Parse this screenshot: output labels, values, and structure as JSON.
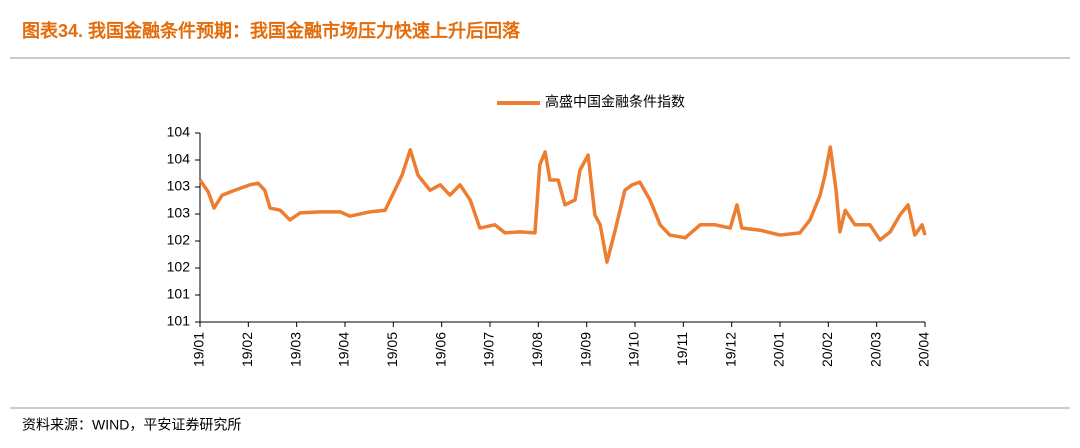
{
  "chart_data": {
    "type": "line",
    "title": "图表34. 我国金融条件预期：我国金融市场压力快速上升后回落",
    "source": "资料来源：WIND，平安证券研究所",
    "x": [
      0,
      0.17,
      0.29,
      0.46,
      0.72,
      1.03,
      1.2,
      1.34,
      1.45,
      1.66,
      1.86,
      2.07,
      2.48,
      2.9,
      3.1,
      3.52,
      3.83,
      4.03,
      4.18,
      4.35,
      4.51,
      4.76,
      4.97,
      5.17,
      5.38,
      5.59,
      5.79,
      6.1,
      6.31,
      6.62,
      6.93,
      7.03,
      7.14,
      7.24,
      7.41,
      7.55,
      7.76,
      7.86,
      8.03,
      8.17,
      8.28,
      8.42,
      8.59,
      8.79,
      8.94,
      9.1,
      9.31,
      9.52,
      9.72,
      10.04,
      10.35,
      10.66,
      10.97,
      11.11,
      11.21,
      11.59,
      12,
      12.41,
      12.62,
      12.83,
      12.93,
      13.04,
      13.16,
      13.24,
      13.35,
      13.55,
      13.86,
      14.07,
      14.28,
      14.48,
      14.65,
      14.79,
      14.94,
      15
    ],
    "series": [
      {
        "name": "高盛中国金融条件指数",
        "color": "#ed7d31",
        "values": [
          103.13,
          102.91,
          102.61,
          102.85,
          102.94,
          103.04,
          103.07,
          102.94,
          102.61,
          102.57,
          102.39,
          102.52,
          102.54,
          102.54,
          102.46,
          102.54,
          102.57,
          102.94,
          103.22,
          103.69,
          103.22,
          102.94,
          103.04,
          102.85,
          103.04,
          102.76,
          102.24,
          102.3,
          102.15,
          102.17,
          102.15,
          103.41,
          103.65,
          103.13,
          103.13,
          102.67,
          102.76,
          103.31,
          103.59,
          102.48,
          102.3,
          101.61,
          102.2,
          102.94,
          103.04,
          103.09,
          102.76,
          102.3,
          102.11,
          102.06,
          102.3,
          102.3,
          102.24,
          102.67,
          102.24,
          102.2,
          102.11,
          102.15,
          102.39,
          102.85,
          103.22,
          103.74,
          102.94,
          102.17,
          102.57,
          102.3,
          102.3,
          102.02,
          102.17,
          102.48,
          102.67,
          102.11,
          102.3,
          102.11
        ]
      }
    ],
    "xlim": [
      0,
      15
    ],
    "xticks": [
      {
        "value": 0,
        "label": "19/01"
      },
      {
        "value": 1,
        "label": "19/02"
      },
      {
        "value": 2,
        "label": "19/03"
      },
      {
        "value": 3,
        "label": "19/04"
      },
      {
        "value": 4,
        "label": "19/05"
      },
      {
        "value": 5,
        "label": "19/06"
      },
      {
        "value": 6,
        "label": "19/07"
      },
      {
        "value": 7,
        "label": "19/08"
      },
      {
        "value": 8,
        "label": "19/09"
      },
      {
        "value": 9,
        "label": "19/10"
      },
      {
        "value": 10,
        "label": "19/11"
      },
      {
        "value": 11,
        "label": "19/12"
      },
      {
        "value": 12,
        "label": "20/01"
      },
      {
        "value": 13,
        "label": "20/02"
      },
      {
        "value": 14,
        "label": "20/03"
      },
      {
        "value": 15,
        "label": "20/04"
      }
    ],
    "ylim": [
      100.5,
      104
    ],
    "yticks": [
      104,
      {
        "value": 103.5,
        "label": "104"
      },
      103,
      {
        "value": 102.5,
        "label": "103"
      },
      102,
      {
        "value": 101.5,
        "label": "102"
      },
      101,
      {
        "value": 100.5,
        "label": "101"
      }
    ],
    "grid": false
  }
}
